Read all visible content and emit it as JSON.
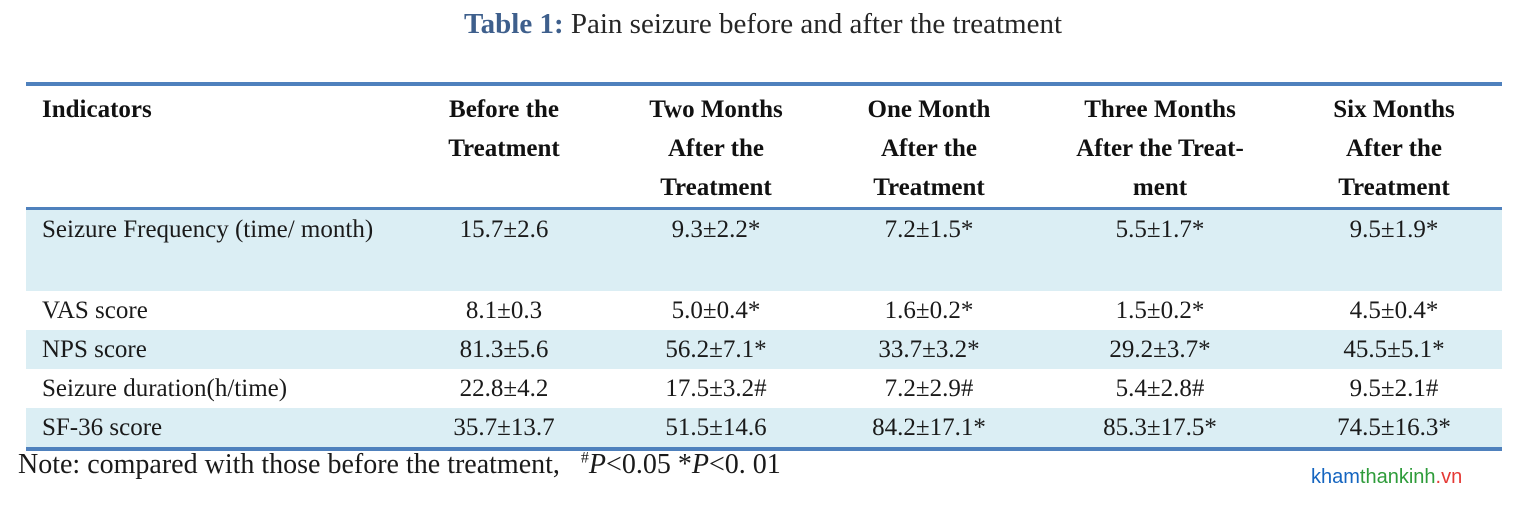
{
  "caption": {
    "label": "Table 1:",
    "text": " Pain seizure before and after the treatment"
  },
  "table": {
    "headers": [
      [
        "Indicators"
      ],
      [
        "Before the",
        "Treatment"
      ],
      [
        "Two Months",
        "After the",
        "Treatment"
      ],
      [
        "One Month",
        "After the",
        "Treatment"
      ],
      [
        "Three Months",
        "After the Treat-",
        "ment"
      ],
      [
        "Six Months",
        "After the",
        "Treatment"
      ]
    ],
    "rows": [
      [
        "Seizure Frequency (time/ month)",
        "15.7±2.6",
        "9.3±2.2*",
        "7.2±1.5*",
        "5.5±1.7*",
        "9.5±1.9*"
      ],
      [
        "VAS score",
        "8.1±0.3",
        "5.0±0.4*",
        "1.6±0.2*",
        "1.5±0.2*",
        "4.5±0.4*"
      ],
      [
        "NPS score",
        "81.3±5.6",
        "56.2±7.1*",
        "33.7±3.2*",
        "29.2±3.7*",
        "45.5±5.1*"
      ],
      [
        "Seizure duration(h/time)",
        "22.8±4.2",
        "17.5±3.2#",
        "7.2±2.9#",
        "5.4±2.8#",
        "9.5±2.1#"
      ],
      [
        "SF-36 score",
        "35.7±13.7",
        "51.5±14.6",
        "84.2±17.1*",
        "85.3±17.5*",
        "74.5±16.3*"
      ]
    ]
  },
  "note": {
    "prefix": "Note: compared with those before the treatment,",
    "hash": "#",
    "p1": "P",
    "p1_value": "<0.05 *",
    "p2": "P",
    "p2_value": "<0. 01"
  },
  "watermark": {
    "part1": "kham",
    "part2": "thankinh",
    "part3": ".vn"
  },
  "colors": {
    "rule": "#4f81bd",
    "shaded_row": "#dbeef4",
    "caption_label": "#3e5f8c"
  }
}
